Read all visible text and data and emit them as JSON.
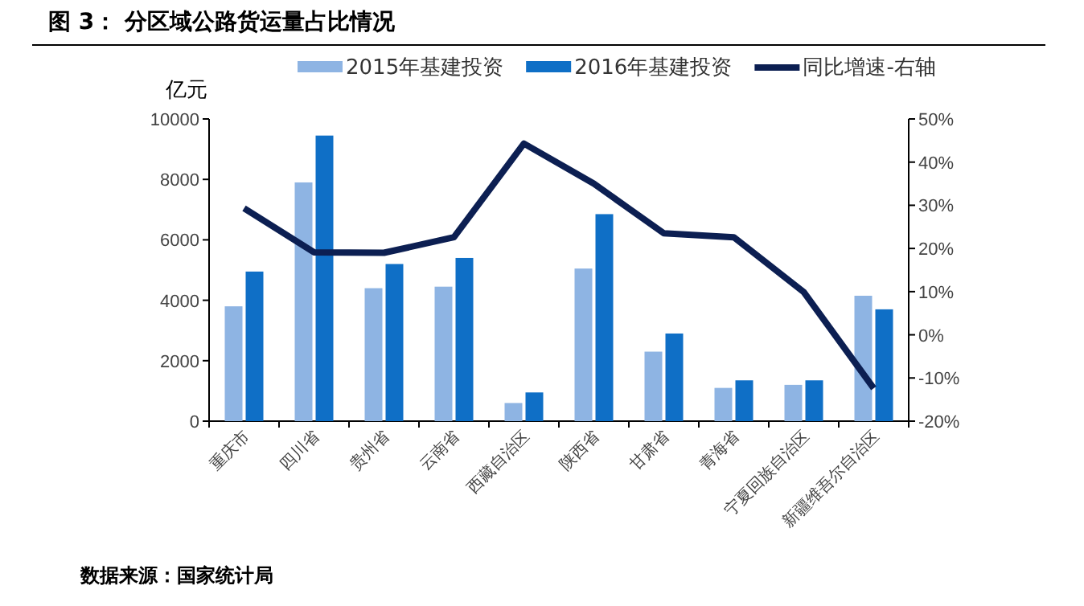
{
  "chart_data": {
    "type": "bar",
    "title": "图 3：  分区域公路货运量占比情况",
    "ylabel": "亿元",
    "categories": [
      "重庆市",
      "四川省",
      "贵州省",
      "云南省",
      "西藏自治区",
      "陕西省",
      "甘肃省",
      "青海省",
      "宁夏回族自治区",
      "新疆维吾尔自治区"
    ],
    "series": [
      {
        "name": "2015年基建投资",
        "color": "#8eb4e3",
        "values": [
          3800,
          7900,
          4400,
          4450,
          600,
          5050,
          2300,
          1100,
          1200,
          4150
        ]
      },
      {
        "name": "2016年基建投资",
        "color": "#0f6fc6",
        "values": [
          4950,
          9450,
          5200,
          5400,
          950,
          6850,
          2900,
          1350,
          1350,
          3700
        ]
      },
      {
        "name": "同比增速-右轴",
        "type": "line",
        "axis": "y2",
        "color": "#0c1f52",
        "values": [
          29.3,
          19.1,
          19.0,
          22.6,
          44.3,
          35.0,
          23.5,
          22.6,
          9.9,
          -12.4
        ]
      }
    ],
    "ylim": [
      0,
      10000
    ],
    "yticks": [
      0,
      2000,
      4000,
      6000,
      8000,
      10000
    ],
    "y2lim": [
      -20,
      50
    ],
    "y2ticks": [
      {
        "value": -20,
        "label": "-20%"
      },
      {
        "value": -10,
        "label": "-10%"
      },
      {
        "value": 0,
        "label": "0%"
      },
      {
        "value": 10,
        "label": "10%"
      },
      {
        "value": 20,
        "label": "20%"
      },
      {
        "value": 30,
        "label": "30%"
      },
      {
        "value": 40,
        "label": "40%"
      },
      {
        "value": 50,
        "label": "50%"
      }
    ],
    "legend": "top",
    "grid": false,
    "annotations": [
      "数据来源：国家统计局"
    ]
  }
}
